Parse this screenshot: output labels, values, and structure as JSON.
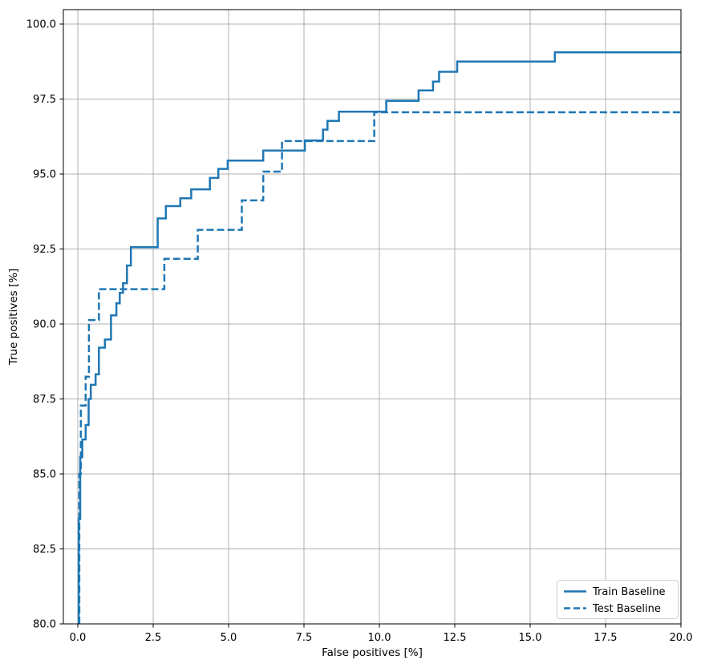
{
  "figure": {
    "background": "#ffffff"
  },
  "chart_data": {
    "type": "line",
    "subtype": "step",
    "title": "",
    "xlabel": "False positives [%]",
    "ylabel": "True positives [%]",
    "xlim": [
      -0.48,
      20.0
    ],
    "ylim": [
      80.0,
      100.48
    ],
    "grid": true,
    "xticks": [
      0.0,
      2.5,
      5.0,
      7.5,
      10.0,
      12.5,
      15.0,
      17.5,
      20.0
    ],
    "xtick_labels": [
      "0.0",
      "2.5",
      "5.0",
      "7.5",
      "10.0",
      "12.5",
      "15.0",
      "17.5",
      "20.0"
    ],
    "yticks": [
      80.0,
      82.5,
      85.0,
      87.5,
      90.0,
      92.5,
      95.0,
      97.5,
      100.0
    ],
    "ytick_labels": [
      "80.0",
      "82.5",
      "85.0",
      "87.5",
      "90.0",
      "92.5",
      "95.0",
      "97.5",
      "100.0"
    ],
    "colors": {
      "line": "#1f77b4",
      "grid": "#b0b0b0",
      "spine": "#000000",
      "legend_edge": "#cccccc",
      "legend_face": "#ffffff"
    },
    "legend": {
      "position": "lower right",
      "labels": [
        "Train Baseline",
        "Test Baseline"
      ]
    },
    "series": [
      {
        "name": "Train Baseline",
        "style": "solid",
        "color": "#1f77b4",
        "linewidth": 2.5,
        "points": [
          [
            0.03,
            80.0
          ],
          [
            0.03,
            83.5
          ],
          [
            0.08,
            83.5
          ],
          [
            0.08,
            85.56
          ],
          [
            0.15,
            85.56
          ],
          [
            0.15,
            86.15
          ],
          [
            0.26,
            86.15
          ],
          [
            0.26,
            86.63
          ],
          [
            0.36,
            86.63
          ],
          [
            0.36,
            87.5
          ],
          [
            0.43,
            87.5
          ],
          [
            0.43,
            87.97
          ],
          [
            0.59,
            87.97
          ],
          [
            0.59,
            88.32
          ],
          [
            0.7,
            88.32
          ],
          [
            0.7,
            89.21
          ],
          [
            0.9,
            89.21
          ],
          [
            0.9,
            89.48
          ],
          [
            1.1,
            89.48
          ],
          [
            1.1,
            90.29
          ],
          [
            1.28,
            90.29
          ],
          [
            1.28,
            90.69
          ],
          [
            1.39,
            90.69
          ],
          [
            1.39,
            91.04
          ],
          [
            1.5,
            91.04
          ],
          [
            1.5,
            91.36
          ],
          [
            1.63,
            91.36
          ],
          [
            1.63,
            91.95
          ],
          [
            1.76,
            91.95
          ],
          [
            1.76,
            92.56
          ],
          [
            2.65,
            92.56
          ],
          [
            2.65,
            93.52
          ],
          [
            2.92,
            93.52
          ],
          [
            2.92,
            93.93
          ],
          [
            3.4,
            93.93
          ],
          [
            3.4,
            94.19
          ],
          [
            3.76,
            94.19
          ],
          [
            3.76,
            94.49
          ],
          [
            4.38,
            94.49
          ],
          [
            4.38,
            94.87
          ],
          [
            4.66,
            94.87
          ],
          [
            4.66,
            95.17
          ],
          [
            4.97,
            95.17
          ],
          [
            4.97,
            95.45
          ],
          [
            6.15,
            95.45
          ],
          [
            6.15,
            95.78
          ],
          [
            7.53,
            95.78
          ],
          [
            7.53,
            96.12
          ],
          [
            8.13,
            96.12
          ],
          [
            8.13,
            96.48
          ],
          [
            8.28,
            96.48
          ],
          [
            8.28,
            96.77
          ],
          [
            8.66,
            96.77
          ],
          [
            8.66,
            97.08
          ],
          [
            10.23,
            97.08
          ],
          [
            10.23,
            97.44
          ],
          [
            11.3,
            97.44
          ],
          [
            11.3,
            97.79
          ],
          [
            11.78,
            97.79
          ],
          [
            11.78,
            98.08
          ],
          [
            11.98,
            98.08
          ],
          [
            11.98,
            98.41
          ],
          [
            12.58,
            98.41
          ],
          [
            12.58,
            98.75
          ],
          [
            15.82,
            98.75
          ],
          [
            15.82,
            99.06
          ],
          [
            20.0,
            99.06
          ]
        ]
      },
      {
        "name": "Test Baseline",
        "style": "dashed",
        "color": "#1f77b4",
        "linewidth": 2.5,
        "points": [
          [
            0.05,
            80.0
          ],
          [
            0.05,
            85.0
          ],
          [
            0.1,
            85.0
          ],
          [
            0.1,
            87.28
          ],
          [
            0.26,
            87.28
          ],
          [
            0.26,
            88.24
          ],
          [
            0.37,
            88.24
          ],
          [
            0.37,
            90.13
          ],
          [
            0.7,
            90.13
          ],
          [
            0.7,
            91.16
          ],
          [
            2.87,
            91.16
          ],
          [
            2.87,
            92.17
          ],
          [
            3.98,
            92.17
          ],
          [
            3.98,
            93.14
          ],
          [
            5.44,
            93.14
          ],
          [
            5.44,
            94.12
          ],
          [
            6.15,
            94.12
          ],
          [
            6.15,
            95.08
          ],
          [
            6.77,
            95.08
          ],
          [
            6.77,
            96.1
          ],
          [
            9.83,
            96.1
          ],
          [
            9.83,
            97.06
          ],
          [
            20.0,
            97.06
          ]
        ]
      }
    ]
  }
}
